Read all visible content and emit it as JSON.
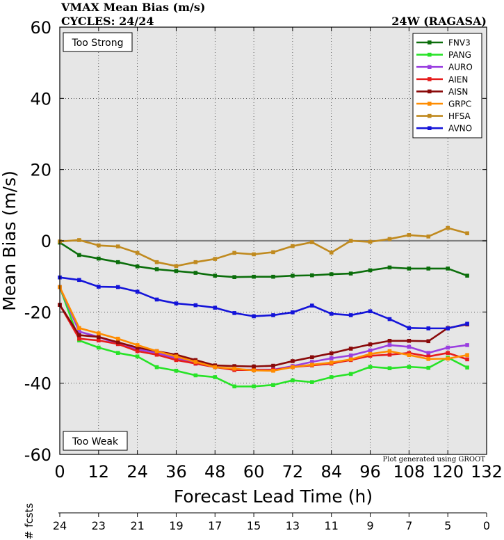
{
  "header": {
    "title": "VMAX Mean Bias (m/s)",
    "cycles": "CYCLES: 24/24",
    "storm": "24W (RAGASA)"
  },
  "annotations": {
    "too_strong": "Too Strong",
    "too_weak": "Too Weak",
    "credit": "Plot generated using GROOT"
  },
  "chart_data": {
    "type": "line",
    "title": "VMAX Mean Bias (m/s)",
    "xlabel": "Forecast Lead Time (h)",
    "ylabel": "Mean Bias (m/s)",
    "xlim": [
      0,
      132
    ],
    "ylim": [
      -60,
      60
    ],
    "xticks": [
      0,
      12,
      24,
      36,
      48,
      60,
      72,
      84,
      96,
      108,
      120,
      132
    ],
    "xtick_labels": [
      "0",
      "12",
      "24",
      "36",
      "48",
      "60",
      "72",
      "84",
      "96",
      "108",
      "120",
      "132"
    ],
    "yticks": [
      -60,
      -40,
      -20,
      0,
      20,
      40,
      60
    ],
    "ytick_labels": [
      "-60",
      "-40",
      "-20",
      "0",
      "20",
      "40",
      "60"
    ],
    "legend_position": "top-right",
    "x": [
      0,
      6,
      12,
      18,
      24,
      30,
      36,
      42,
      48,
      54,
      60,
      66,
      72,
      78,
      84,
      90,
      96,
      102,
      108,
      114,
      120,
      126
    ],
    "series": [
      {
        "name": "FNV3",
        "color": "#0b6e0b",
        "values": [
          -0.5,
          -4,
          -5,
          -6,
          -7.2,
          -8,
          -8.5,
          -9,
          -9.8,
          -10.2,
          -10.1,
          -10.1,
          -9.8,
          -9.7,
          -9.4,
          -9.2,
          -8.3,
          -7.5,
          -7.8,
          -7.8,
          -7.8,
          -9.8
        ]
      },
      {
        "name": "PANG",
        "color": "#27e327",
        "values": [
          -13,
          -28,
          -30,
          -31.5,
          -32.5,
          -35.5,
          -36.5,
          -37.8,
          -38.3,
          -40.9,
          -40.9,
          -40.5,
          -39.2,
          -39.7,
          -38.3,
          -37.4,
          -35.4,
          -35.8,
          -35.4,
          -35.7,
          -32.8,
          -35.6
        ]
      },
      {
        "name": "AURO",
        "color": "#9a3fe0",
        "values": [
          -13,
          -25.5,
          -27,
          -29,
          -30.5,
          -31.5,
          -33,
          -34.5,
          -35.5,
          -36.2,
          -36.2,
          -36.2,
          -35.2,
          -34,
          -33,
          -32.2,
          -30.8,
          -29.3,
          -29.8,
          -31.5,
          -30,
          -29.3
        ]
      },
      {
        "name": "AIEN",
        "color": "#e61c1c",
        "values": [
          -18,
          -27.5,
          -28,
          -29,
          -31,
          -32,
          -33.5,
          -34.5,
          -35.5,
          -36.3,
          -36.3,
          -36.3,
          -35.5,
          -35,
          -34.5,
          -33.5,
          -32.3,
          -32,
          -31.5,
          -32.5,
          -31.5,
          -33.3
        ]
      },
      {
        "name": "AISN",
        "color": "#8a0a0a",
        "values": [
          -18,
          -26.5,
          -27,
          -28.5,
          -30,
          -31,
          -32,
          -33.5,
          -35,
          -35.2,
          -35.3,
          -35.1,
          -33.8,
          -32.7,
          -31.6,
          -30.3,
          -29.1,
          -28.1,
          -28.1,
          -28.2,
          -24.5,
          -23.5
        ]
      },
      {
        "name": "GRPC",
        "color": "#ff8c00",
        "values": [
          -13,
          -24.5,
          -26,
          -27.5,
          -29.3,
          -31,
          -32.5,
          -34,
          -35.5,
          -35.9,
          -36.4,
          -36.5,
          -35.5,
          -34.8,
          -34.2,
          -33.3,
          -31.8,
          -31,
          -32.1,
          -33.2,
          -33.1,
          -32.1
        ]
      },
      {
        "name": "HFSA",
        "color": "#c08a1f",
        "values": [
          -0.2,
          0.2,
          -1.3,
          -1.6,
          -3.4,
          -6,
          -7.1,
          -6,
          -5.1,
          -3.4,
          -3.8,
          -3.2,
          -1.5,
          -0.4,
          -3.3,
          0,
          -0.3,
          0.5,
          1.6,
          1.2,
          3.6,
          2.1
        ]
      },
      {
        "name": "AVNO",
        "color": "#1414d9",
        "values": [
          -10.3,
          -11,
          -12.9,
          -13,
          -14.3,
          -16.5,
          -17.6,
          -18.1,
          -18.8,
          -20.3,
          -21.2,
          -20.9,
          -20.1,
          -18.2,
          -20.5,
          -20.9,
          -19.8,
          -22,
          -24.5,
          -24.6,
          -24.6,
          -23.3
        ]
      }
    ],
    "fcsts": {
      "label": "# fcsts",
      "x": [
        0,
        12,
        24,
        36,
        48,
        60,
        72,
        84,
        96,
        108,
        120,
        132
      ],
      "counts": [
        "24",
        "23",
        "21",
        "19",
        "17",
        "15",
        "13",
        "11",
        "9",
        "7",
        "5",
        "0"
      ]
    }
  }
}
